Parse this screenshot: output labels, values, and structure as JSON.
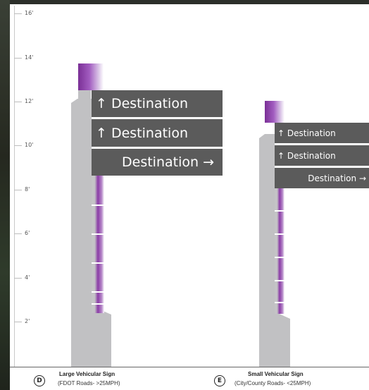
{
  "ruler": {
    "unit": "feet",
    "labels": [
      "16'",
      "14'",
      "12'",
      "10'",
      "8'",
      "6'",
      "4'",
      "2'"
    ]
  },
  "sign_d": {
    "letter": "D",
    "title": "Large Vehicular Sign",
    "subtitle": "(FDOT Roads- >25MPH)",
    "panels": [
      "↑ Destination",
      "↑ Destination",
      "Destination →"
    ]
  },
  "sign_e": {
    "letter": "E",
    "title": "Small Vehicular Sign",
    "subtitle": "(City/County Roads- <25MPH)",
    "panels": [
      "↑ Destination",
      "↑ Destination",
      "Destination →"
    ]
  },
  "colors": {
    "panel": "#5b5b5b",
    "post": "#c1c1c3",
    "accent": "#8a3ba6"
  }
}
